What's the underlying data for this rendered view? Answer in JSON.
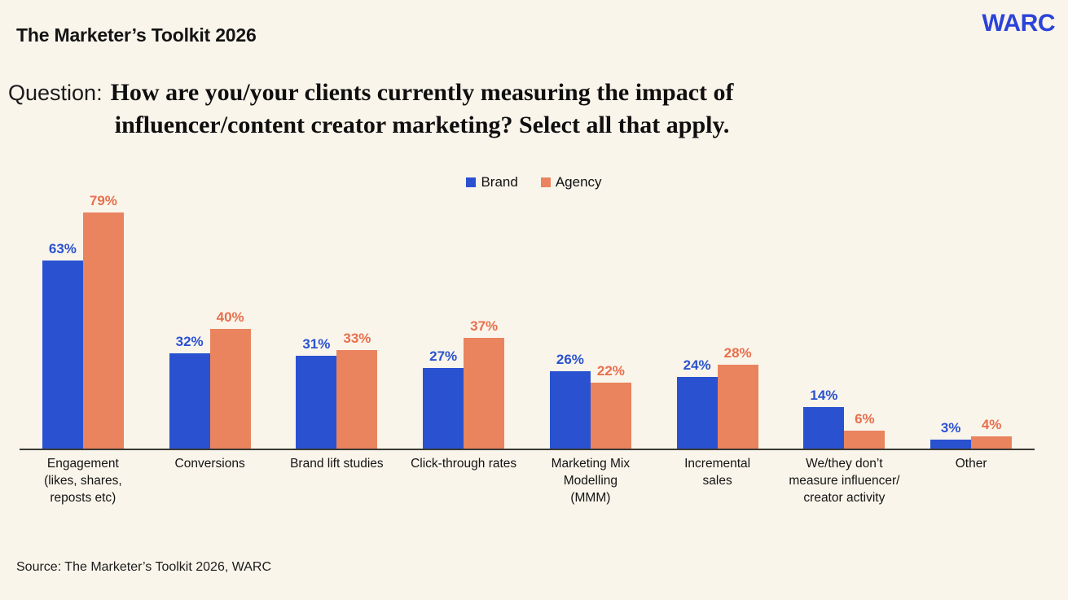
{
  "header": {
    "title": "The Marketer’s Toolkit 2026",
    "logo": "WARC"
  },
  "question": {
    "prefix": "Question:",
    "line1": "How are you/your clients currently measuring the impact of",
    "line2": "influencer/content creator marketing? Select all that apply."
  },
  "source": {
    "text": "Source: The Marketer’s Toolkit 2026, WARC"
  },
  "colors": {
    "background": "#FAF5EB",
    "brand_blue": "#2A52D0",
    "agency_salmon": "#E9845F",
    "brand_label": "#2A52D0",
    "agency_label": "#E86F4C",
    "axis": "#3a3a36",
    "logo_blue": "#2B43D8"
  },
  "chart_data": {
    "type": "bar",
    "title": "",
    "value_suffix": "%",
    "ylim": [
      0,
      85
    ],
    "grid": false,
    "legend_position": "top-center",
    "categories": [
      {
        "label": "Engagement (likes, shares, reposts etc)",
        "lines": [
          "Engagement",
          "(likes, shares,",
          "reposts etc)"
        ]
      },
      {
        "label": "Conversions",
        "lines": [
          "Conversions"
        ]
      },
      {
        "label": "Brand lift studies",
        "lines": [
          "Brand lift studies"
        ]
      },
      {
        "label": "Click-through rates",
        "lines": [
          "Click-through rates"
        ]
      },
      {
        "label": "Marketing Mix Modelling (MMM)",
        "lines": [
          "Marketing Mix",
          "Modelling",
          "(MMM)"
        ]
      },
      {
        "label": "Incremental sales",
        "lines": [
          "Incremental",
          "sales"
        ]
      },
      {
        "label": "We/they don’t measure influencer/ creator activity",
        "lines": [
          "We/they don’t",
          "measure influencer/",
          "creator activity"
        ]
      },
      {
        "label": "Other",
        "lines": [
          "Other"
        ]
      }
    ],
    "series": [
      {
        "name": "Brand",
        "color": "#2A52D0",
        "label_color": "#2A52D0",
        "values": [
          63,
          32,
          31,
          27,
          26,
          24,
          14,
          3
        ]
      },
      {
        "name": "Agency",
        "color": "#E9845F",
        "label_color": "#E86F4C",
        "values": [
          79,
          40,
          33,
          37,
          22,
          28,
          6,
          4
        ]
      }
    ]
  }
}
